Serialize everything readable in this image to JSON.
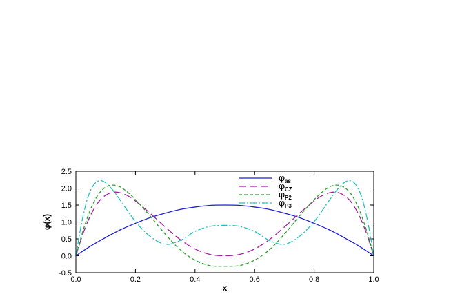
{
  "chart_data": {
    "type": "line",
    "title": "",
    "xlabel": "x",
    "ylabel": "φ(x)",
    "xlim": [
      0.0,
      1.0
    ],
    "ylim": [
      -0.5,
      2.5
    ],
    "xticks": [
      "0.0",
      "0.2",
      "0.4",
      "0.6",
      "0.8",
      "1.0"
    ],
    "yticks": [
      "-0.5",
      "0.0",
      "0.5",
      "1.0",
      "1.5",
      "2.0",
      "2.5"
    ],
    "grid": false,
    "legend_position": "top-center",
    "series": [
      {
        "name": "φas",
        "legend_main": "φ",
        "legend_sub": "as",
        "color": "#1f1fd0",
        "dash": "solid",
        "x": [
          0.0,
          0.05,
          0.1,
          0.15,
          0.2,
          0.25,
          0.3,
          0.35,
          0.4,
          0.45,
          0.5,
          0.55,
          0.6,
          0.65,
          0.7,
          0.75,
          0.8,
          0.85,
          0.9,
          0.95,
          1.0
        ],
        "values": [
          0.0,
          0.29,
          0.54,
          0.77,
          0.96,
          1.13,
          1.26,
          1.37,
          1.44,
          1.49,
          1.5,
          1.49,
          1.44,
          1.37,
          1.26,
          1.13,
          0.96,
          0.77,
          0.54,
          0.29,
          0.0
        ]
      },
      {
        "name": "φCZ",
        "legend_main": "φ",
        "legend_sub": "CZ",
        "color": "#a020a0",
        "dash": "long-dash",
        "x": [
          0.0,
          0.025,
          0.05,
          0.075,
          0.1,
          0.125,
          0.15,
          0.175,
          0.2,
          0.25,
          0.3,
          0.35,
          0.4,
          0.45,
          0.5,
          0.55,
          0.6,
          0.65,
          0.7,
          0.75,
          0.8,
          0.825,
          0.85,
          0.875,
          0.9,
          0.925,
          0.95,
          0.975,
          1.0
        ],
        "values": [
          0.0,
          0.68,
          1.21,
          1.58,
          1.79,
          1.88,
          1.86,
          1.77,
          1.62,
          1.25,
          0.85,
          0.48,
          0.2,
          0.04,
          0.0,
          0.04,
          0.2,
          0.48,
          0.85,
          1.25,
          1.62,
          1.77,
          1.86,
          1.88,
          1.79,
          1.58,
          1.21,
          0.68,
          0.0
        ]
      },
      {
        "name": "φP2",
        "legend_main": "φ",
        "legend_sub": "P2",
        "color": "#2ca02c",
        "dash": "dash",
        "x": [
          0.0,
          0.025,
          0.05,
          0.075,
          0.1,
          0.125,
          0.15,
          0.175,
          0.2,
          0.25,
          0.3,
          0.35,
          0.4,
          0.45,
          0.5,
          0.55,
          0.6,
          0.65,
          0.7,
          0.75,
          0.8,
          0.825,
          0.85,
          0.875,
          0.9,
          0.925,
          0.95,
          0.975,
          1.0
        ],
        "values": [
          0.0,
          0.77,
          1.39,
          1.81,
          2.03,
          2.09,
          2.03,
          1.87,
          1.66,
          1.17,
          0.64,
          0.18,
          -0.13,
          -0.29,
          -0.31,
          -0.29,
          -0.13,
          0.18,
          0.64,
          1.17,
          1.66,
          1.87,
          2.03,
          2.09,
          2.03,
          1.81,
          1.39,
          0.77,
          0.0
        ]
      },
      {
        "name": "φP3",
        "legend_main": "φ",
        "legend_sub": "P3",
        "color": "#20c0c0",
        "dash": "dash-dot",
        "x": [
          0.0,
          0.02,
          0.04,
          0.06,
          0.08,
          0.1,
          0.125,
          0.15,
          0.2,
          0.25,
          0.3,
          0.35,
          0.4,
          0.45,
          0.5,
          0.55,
          0.6,
          0.65,
          0.7,
          0.75,
          0.8,
          0.85,
          0.875,
          0.9,
          0.92,
          0.94,
          0.96,
          0.98,
          1.0
        ],
        "values": [
          0.0,
          1.0,
          1.72,
          2.1,
          2.22,
          2.16,
          1.93,
          1.63,
          1.01,
          0.57,
          0.34,
          0.45,
          0.72,
          0.87,
          0.9,
          0.87,
          0.72,
          0.45,
          0.34,
          0.57,
          1.01,
          1.63,
          1.93,
          2.16,
          2.22,
          2.1,
          1.72,
          1.0,
          0.0
        ]
      }
    ]
  }
}
